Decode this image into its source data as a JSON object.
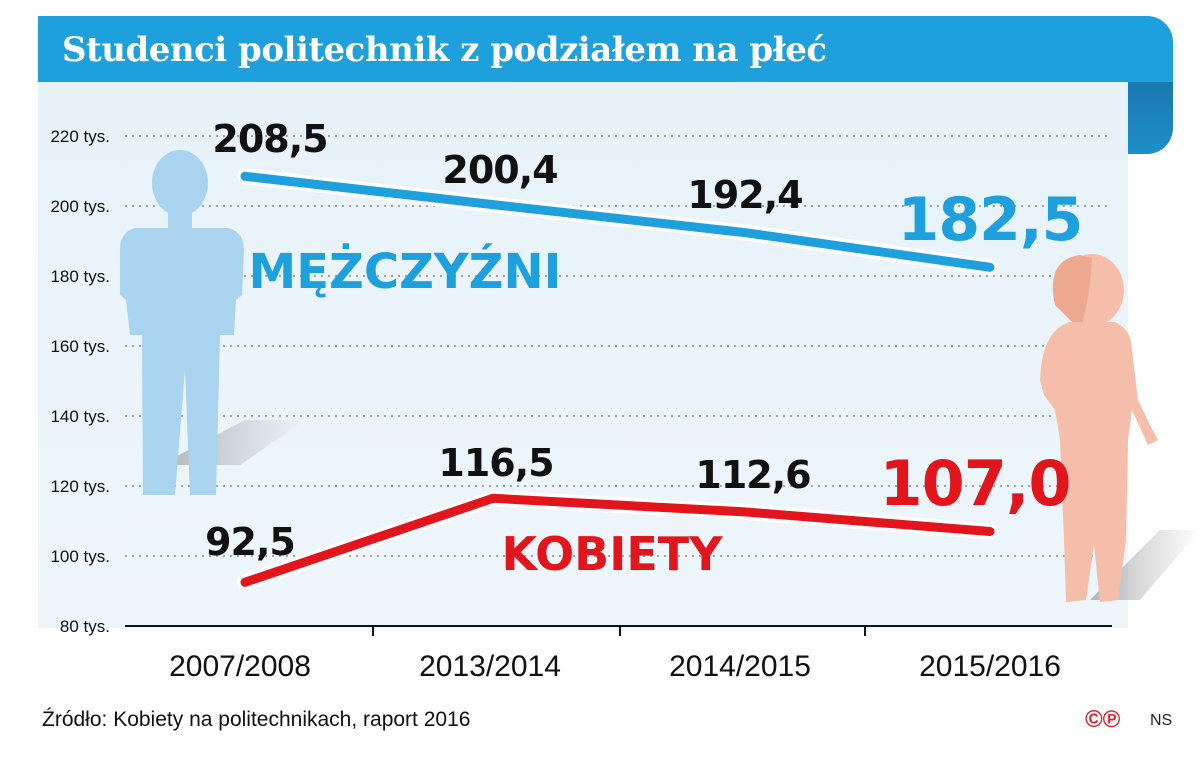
{
  "chart_data": {
    "type": "line",
    "title": "Studenci politechnik z podziałem na płeć",
    "categories": [
      "2007/2008",
      "2013/2014",
      "2014/2015",
      "2015/2016"
    ],
    "y_ticks": [
      "80 tys.",
      "100 tys.",
      "120 tys.",
      "140 tys.",
      "160 tys.",
      "180 tys.",
      "200 tys.",
      "220 tys."
    ],
    "y_tick_values": [
      80,
      100,
      120,
      140,
      160,
      180,
      200,
      220
    ],
    "ylim": [
      80,
      220
    ],
    "grid": true,
    "series": [
      {
        "name": "MĘŻCZYŹNI",
        "color": "#1ea0dc",
        "values": [
          208.5,
          200.4,
          192.4,
          182.5
        ],
        "labels": [
          "208,5",
          "200,4",
          "192,4",
          "182,5"
        ]
      },
      {
        "name": "KOBIETY",
        "color": "#e2141c",
        "values": [
          92.5,
          116.5,
          112.6,
          107.0
        ],
        "labels": [
          "92,5",
          "116,5",
          "112,6",
          "107,0"
        ]
      }
    ]
  },
  "source": "Źródło: Kobiety na politechnikach, raport 2016",
  "logo": "©℗",
  "author": "NS"
}
